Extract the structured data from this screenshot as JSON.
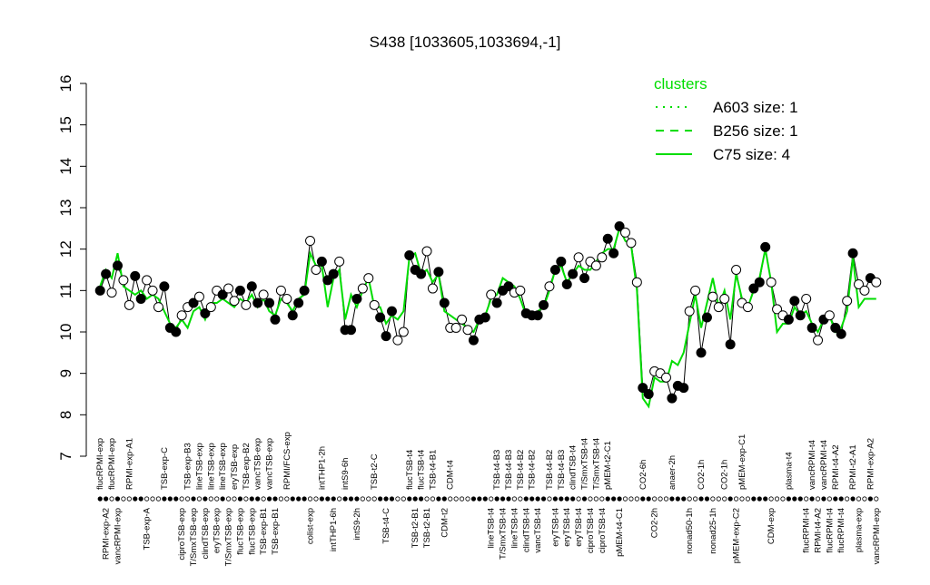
{
  "chart_data": {
    "type": "line",
    "title": "S438 [1033605,1033694,-1]",
    "ylim": [
      7,
      16
    ],
    "yticks": [
      7,
      8,
      9,
      10,
      11,
      12,
      13,
      14,
      15,
      16
    ],
    "legend_title": "clusters",
    "legend_color": "#00dd00",
    "legend": [
      {
        "label": "A603 size: 1",
        "dash": "dotted"
      },
      {
        "label": "B256 size: 1",
        "dash": "dashed"
      },
      {
        "label": "C75 size: 4",
        "dash": "solid"
      }
    ],
    "categories": [
      "flucRPMI-exp",
      "RPMI-exp-A2",
      "flucRPMI-exp",
      "vancRPMI-exp",
      null,
      "RPMI-exp-A1",
      null,
      null,
      "TSB-exp-A",
      null,
      null,
      "TSB-exp-C",
      null,
      null,
      "ciproTSB-exp",
      "TSB-exp-B3",
      "T/SmxTSB-exp",
      "lineTSB-exp",
      "clindTSB-exp",
      "lineTSB-exp",
      "eryTSB-exp",
      "lineTSB-exp",
      "T/SmxTSB-exp",
      "eryTSB-exp",
      "flucTSB-exp",
      "TSB-exp-B2",
      "flucTSB-exp",
      "vancTSB-exp",
      "TSB-exp-B1",
      "vancTSB-exp",
      "TSB-exp-B1",
      null,
      "RPMI/FCS-exp",
      null,
      null,
      null,
      "colist-exp",
      null,
      "intTHP1-2h",
      null,
      "intTHP1-6h",
      null,
      "intS9-6h",
      null,
      "intS9-2h",
      null,
      null,
      "TSB-t2-C",
      null,
      "TSB-t4-C",
      null,
      null,
      null,
      "flucTSB-t4",
      "TSB-t2-B1",
      "flucTSB-t4",
      "TSB-t2-B1",
      "TSB-t4-B1",
      null,
      "CDM-t2",
      "CDM-t4",
      null,
      null,
      null,
      null,
      null,
      null,
      "lineTSB-t4",
      "TSB-t4-B3",
      "T/SmxTSB-t4",
      "TSB-t4-B3",
      "lineTSB-t4",
      "TSB-t4-B2",
      "clindTSB-t4",
      "TSB-t4-B2",
      "vancTSB-t4",
      null,
      "TSB-t4-B2",
      "eryTSB-t4",
      "TSB-t4-B3",
      "eryTSB-t4",
      "clindTSB-t4",
      "eryTSB-t4",
      "T/SmxTSB-t4",
      "ciproTSB-t4",
      "T/SmxTSB-t4",
      "ciproTSB-t4",
      "pMEM-t2-C1",
      null,
      "pMEM-t4-C1",
      null,
      null,
      null,
      "CO2-6h",
      null,
      "CO2-2h",
      null,
      null,
      "anaer-2h",
      null,
      null,
      "nonad50-1h",
      null,
      "CO2-1h",
      null,
      "nonad25-1h",
      null,
      "CO2-1h",
      null,
      "pMEM-exp-C2",
      "pMEM-exp-C1",
      null,
      null,
      null,
      null,
      "CDM-exp",
      null,
      null,
      "plasma-t4",
      null,
      null,
      "flucRPMI-t4",
      "vancRPMI-t4",
      "RPMI-t4-A2",
      "vancRPMI-t4",
      "flucRPMI-t4",
      "RPMI-t4-A2",
      "flucRPMI-t4",
      null,
      "RPMI-t2-A1",
      "plasma-exp",
      null,
      "RPMI-exp-A2",
      "vancRPMI-exp"
    ],
    "points": {
      "color": "#000000",
      "values": [
        11.0,
        11.4,
        10.95,
        11.6,
        11.25,
        10.65,
        11.35,
        10.8,
        11.25,
        11.0,
        10.6,
        11.1,
        10.1,
        10.0,
        10.4,
        10.6,
        10.7,
        10.85,
        10.45,
        10.6,
        11.0,
        10.9,
        11.05,
        10.75,
        11.0,
        10.65,
        11.1,
        10.7,
        10.9,
        10.7,
        10.3,
        11.0,
        10.8,
        10.4,
        10.7,
        11.0,
        12.2,
        11.5,
        11.7,
        11.25,
        11.4,
        11.7,
        10.05,
        10.05,
        10.8,
        11.05,
        11.3,
        10.65,
        10.35,
        9.9,
        10.5,
        9.8,
        10.0,
        11.85,
        11.5,
        11.4,
        11.95,
        11.05,
        11.45,
        10.7,
        10.1,
        10.1,
        10.3,
        10.05,
        9.8,
        10.3,
        10.35,
        10.9,
        10.7,
        11.0,
        11.1,
        10.95,
        11.0,
        10.45,
        10.4,
        10.4,
        10.65,
        11.1,
        11.5,
        11.7,
        11.15,
        11.4,
        11.8,
        11.3,
        11.7,
        11.6,
        11.8,
        12.25,
        11.9,
        12.55,
        12.4,
        12.15,
        11.2,
        8.65,
        8.5,
        9.05,
        9.0,
        8.9,
        8.4,
        8.7,
        8.65,
        10.5,
        11.0,
        9.5,
        10.35,
        10.85,
        10.6,
        10.8,
        9.7,
        11.5,
        10.7,
        10.6,
        11.05,
        11.2,
        12.05,
        11.2,
        10.55,
        10.4,
        10.3,
        10.75,
        10.4,
        10.8,
        10.1,
        9.8,
        10.3,
        10.4,
        10.1,
        9.95,
        10.75,
        11.9,
        11.15,
        11.0,
        11.3,
        11.2
      ],
      "filled": [
        1,
        1,
        0,
        1,
        0,
        0,
        1,
        1,
        0,
        0,
        0,
        1,
        1,
        1,
        0,
        0,
        1,
        0,
        1,
        0,
        0,
        1,
        0,
        0,
        1,
        0,
        1,
        1,
        0,
        1,
        1,
        0,
        0,
        1,
        1,
        1,
        0,
        0,
        1,
        1,
        1,
        0,
        1,
        1,
        1,
        0,
        0,
        0,
        1,
        1,
        1,
        0,
        0,
        1,
        1,
        1,
        0,
        0,
        1,
        1,
        0,
        0,
        0,
        0,
        1,
        1,
        1,
        0,
        1,
        1,
        1,
        0,
        0,
        1,
        1,
        1,
        1,
        0,
        1,
        1,
        1,
        1,
        0,
        1,
        0,
        0,
        0,
        1,
        1,
        1,
        0,
        0,
        0,
        1,
        1,
        0,
        0,
        0,
        1,
        1,
        1,
        0,
        0,
        1,
        1,
        0,
        0,
        0,
        1,
        0,
        0,
        0,
        1,
        1,
        1,
        0,
        0,
        0,
        1,
        1,
        1,
        0,
        1,
        0,
        1,
        0,
        1,
        1,
        0,
        1,
        0,
        0,
        1,
        0
      ]
    },
    "series": [
      {
        "name": "C75 size: 4",
        "color": "#00dd00",
        "values": [
          11.1,
          11.5,
          11.3,
          11.9,
          11.1,
          11.0,
          10.9,
          11.0,
          10.8,
          10.9,
          10.8,
          10.5,
          10.2,
          10.1,
          10.3,
          10.1,
          10.5,
          10.6,
          10.3,
          10.7,
          10.7,
          10.8,
          10.7,
          10.6,
          10.8,
          10.7,
          10.9,
          10.6,
          10.8,
          10.5,
          10.4,
          10.8,
          10.7,
          10.5,
          10.8,
          10.9,
          11.9,
          11.6,
          11.6,
          10.6,
          11.3,
          11.5,
          10.3,
          10.9,
          10.6,
          11.0,
          11.3,
          10.6,
          10.6,
          10.2,
          10.4,
          10.3,
          10.5,
          11.8,
          11.9,
          11.4,
          11.5,
          11.2,
          11.4,
          10.5,
          10.4,
          10.3,
          10.2,
          10.1,
          10.0,
          10.3,
          10.4,
          10.8,
          10.9,
          11.3,
          11.2,
          11.1,
          10.8,
          10.4,
          10.4,
          10.5,
          10.6,
          11.0,
          11.5,
          11.6,
          11.2,
          11.4,
          11.6,
          11.5,
          11.5,
          11.7,
          11.9,
          12.0,
          12.0,
          12.5,
          12.2,
          12.1,
          11.0,
          8.4,
          8.2,
          8.9,
          8.8,
          8.8,
          9.3,
          9.2,
          9.5,
          10.2,
          10.9,
          10.1,
          10.7,
          11.3,
          10.6,
          11.0,
          10.3,
          11.4,
          10.8,
          10.6,
          11.0,
          11.3,
          12.0,
          11.2,
          10.0,
          10.2,
          10.2,
          10.6,
          10.4,
          10.5,
          10.2,
          10.0,
          10.3,
          10.4,
          10.0,
          10.1,
          10.5,
          11.8,
          10.6,
          10.8,
          10.8,
          10.8
        ]
      }
    ]
  }
}
